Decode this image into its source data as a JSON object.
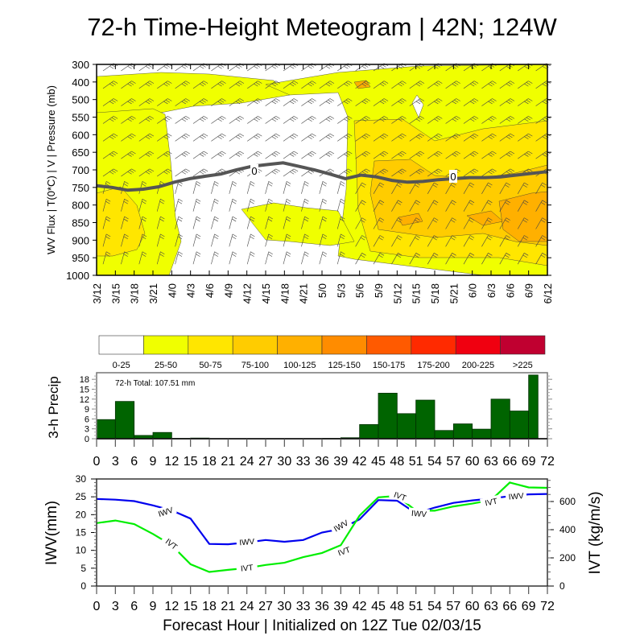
{
  "title": "72-h Time-Height Meteogram | 42N; 124W",
  "chart_data": [
    {
      "type": "heatmap",
      "name": "time-height-meteogram",
      "ylabel": "WV Flux | T(0*C) | V | Pressure (mb)",
      "y_tick_labels": [
        "300",
        "400",
        "500",
        "550",
        "600",
        "650",
        "700",
        "750",
        "800",
        "850",
        "900",
        "950",
        "1000"
      ],
      "x_tick_labels": [
        "3/12",
        "3/15",
        "3/18",
        "3/21",
        "4/0",
        "4/3",
        "4/6",
        "4/9",
        "4/12",
        "4/15",
        "4/18",
        "4/21",
        "5/0",
        "5/3",
        "5/6",
        "5/9",
        "5/12",
        "5/15",
        "5/18",
        "5/21",
        "6/0",
        "6/3",
        "6/6",
        "6/9",
        "6/12"
      ],
      "freezing_level_label": "0",
      "freezing_level_mb": [
        745,
        750,
        758,
        755,
        748,
        735,
        725,
        718,
        712,
        700,
        690,
        685,
        680,
        690,
        700,
        712,
        725,
        715,
        720,
        730,
        735,
        733,
        728,
        725,
        722,
        722,
        720,
        715,
        710,
        705
      ],
      "colorbar": {
        "labels": [
          "0-25",
          "25-50",
          "50-75",
          "75-100",
          "100-125",
          "125-150",
          "150-175",
          "175-200",
          "200-225",
          ">225"
        ],
        "colors": [
          "#ffffff",
          "#f0ff00",
          "#ffe600",
          "#ffcc00",
          "#ffb000",
          "#ff8c00",
          "#ff5a00",
          "#ff2a00",
          "#f00010",
          "#c00030"
        ]
      }
    },
    {
      "type": "bar",
      "name": "3h-precip",
      "ylabel": "3-h Precip",
      "annotation": "72-h Total: 107.51 mm",
      "y_ticks": [
        "0",
        "3",
        "6",
        "9",
        "12",
        "15",
        "18"
      ],
      "ylim": [
        0,
        20
      ],
      "x_ticks": [
        "0",
        "3",
        "6",
        "9",
        "12",
        "15",
        "18",
        "21",
        "24",
        "27",
        "30",
        "33",
        "36",
        "39",
        "42",
        "45",
        "48",
        "51",
        "54",
        "57",
        "60",
        "63",
        "66",
        "69",
        "72"
      ],
      "x": [
        3,
        6,
        9,
        12,
        15,
        18,
        21,
        24,
        27,
        30,
        33,
        36,
        39,
        42,
        45,
        48,
        51,
        54,
        57,
        60,
        63,
        66,
        69,
        72
      ],
      "values": [
        5.8,
        11.3,
        1.0,
        1.9,
        0.1,
        0.2,
        0,
        0,
        0,
        0,
        0,
        0,
        0.1,
        0.3,
        4.3,
        13.8,
        7.6,
        11.7,
        2.5,
        4.5,
        2.9,
        12.0,
        8.4,
        19.3
      ],
      "bar_color": "#006400"
    },
    {
      "type": "line",
      "name": "iwv-ivt",
      "xlabel": "Forecast Hour | Initialized on 12Z Tue 02/03/15",
      "ylabel": "IWV(mm)",
      "ylabel_right": "IVT (kg/m/s)",
      "ylim": [
        0,
        30
      ],
      "ylim_right": [
        0,
        760
      ],
      "y_ticks": [
        "0",
        "5",
        "10",
        "15",
        "20",
        "25",
        "30"
      ],
      "y_ticks_right": [
        "0",
        "200",
        "400",
        "600"
      ],
      "x_ticks": [
        "0",
        "3",
        "6",
        "9",
        "12",
        "15",
        "18",
        "21",
        "24",
        "27",
        "30",
        "33",
        "36",
        "39",
        "42",
        "45",
        "48",
        "51",
        "54",
        "57",
        "60",
        "63",
        "66",
        "69",
        "72"
      ],
      "x": [
        0,
        3,
        6,
        9,
        12,
        15,
        18,
        21,
        24,
        27,
        30,
        33,
        36,
        39,
        42,
        45,
        48,
        51,
        54,
        57,
        60,
        63,
        66,
        69,
        72
      ],
      "series": [
        {
          "name": "IWV",
          "axis": "left",
          "color": "#0000ee",
          "values": [
            24.4,
            24.2,
            23.8,
            22.6,
            21.2,
            18.9,
            11.8,
            11.7,
            12.2,
            12.9,
            12.4,
            12.9,
            15.0,
            16.0,
            18.7,
            24.1,
            23.9,
            20.4,
            22.0,
            23.3,
            24.0,
            24.5,
            25.2,
            25.7,
            25.8
          ]
        },
        {
          "name": "IVT",
          "axis": "right",
          "color": "#00ee00",
          "values": [
            447,
            465,
            440,
            370,
            290,
            155,
            100,
            115,
            128,
            150,
            165,
            205,
            235,
            290,
            500,
            630,
            640,
            535,
            535,
            565,
            585,
            610,
            735,
            700,
            697
          ]
        }
      ]
    }
  ]
}
